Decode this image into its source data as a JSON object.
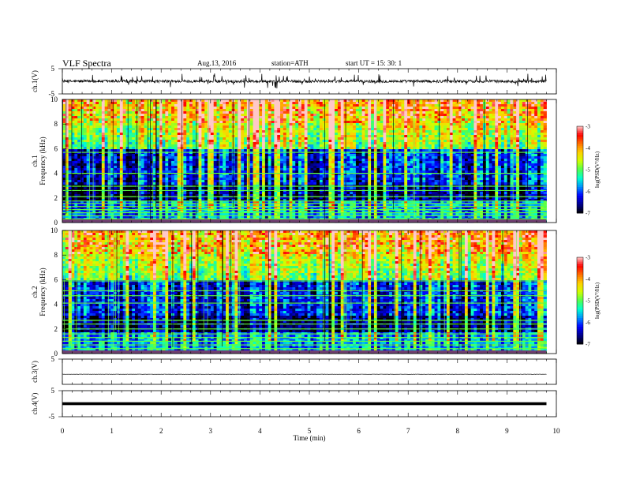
{
  "header": {
    "title": "VLF  Spectra",
    "date": "Aug.13, 2016",
    "station": "station=ATH",
    "start": "start  UT  =    15: 30: 1"
  },
  "chart_data": [
    {
      "id": "ch1-waveform",
      "type": "line",
      "ylabel": "ch.1(V)",
      "ylim": [
        -5,
        5
      ],
      "yticks": [
        "5",
        "-5"
      ],
      "xlim": [
        0,
        10
      ],
      "signal": {
        "baseline": 0,
        "noise_amplitude": 0.55,
        "spike_amplitude": 2.8
      }
    },
    {
      "id": "ch1-spectrogram",
      "type": "heatmap",
      "ylabel": "ch.1\nFrequency (kHz)",
      "ylim": [
        0,
        10
      ],
      "yticks": [
        "0",
        "2",
        "4",
        "6",
        "8",
        "10"
      ],
      "xlim": [
        0,
        9.8
      ],
      "colorbar": {
        "label": "log(PSD(V²/Hz)",
        "ticks": [
          "-3",
          "-4",
          "-5",
          "-6",
          "-7"
        ],
        "range": [
          -7,
          -3
        ]
      },
      "horizontal_lines_khz": [
        0.3,
        0.55,
        0.8,
        1.05,
        1.3,
        1.55,
        1.75,
        2.1,
        2.6,
        2.95,
        4.0,
        5.7
      ]
    },
    {
      "id": "ch2-spectrogram",
      "type": "heatmap",
      "ylabel": "ch.2\nFrequency (kHz)",
      "ylim": [
        0,
        10
      ],
      "yticks": [
        "0",
        "2",
        "4",
        "6",
        "8",
        "10"
      ],
      "xlim": [
        0,
        9.8
      ],
      "colorbar": {
        "label": "log(PSD(V²/Hz)",
        "ticks": [
          "-3",
          "-4",
          "-5",
          "-6",
          "-7"
        ],
        "range": [
          -7,
          -3
        ]
      },
      "horizontal_lines_khz": [
        0.4,
        0.7,
        1.0,
        1.3,
        1.6,
        2.0,
        2.4,
        2.7,
        4.1,
        4.7,
        5.1,
        5.9
      ]
    },
    {
      "id": "ch3-waveform",
      "type": "line",
      "ylabel": "ch.3(V)",
      "ylim": [
        -5,
        5
      ],
      "yticks": [
        "5"
      ],
      "xlim": [
        0,
        10
      ],
      "signal": {
        "baseline": -1,
        "noise_amplitude": 0.05,
        "spike_amplitude": 0
      }
    },
    {
      "id": "ch4-waveform",
      "type": "line",
      "ylabel": "ch.4(V)",
      "ylim": [
        -5,
        5
      ],
      "yticks": [
        "5",
        "-5"
      ],
      "xlim": [
        0,
        10
      ],
      "signal": {
        "baseline": 0,
        "noise_amplitude": 0.25,
        "spike_amplitude": 0
      }
    }
  ],
  "xaxis": {
    "label": "Time  (min)",
    "ticks": [
      "0",
      "1",
      "2",
      "3",
      "4",
      "5",
      "6",
      "7",
      "8",
      "9",
      "10"
    ],
    "range": [
      0,
      10
    ]
  },
  "colors": {
    "colormap": [
      "#000000",
      "#00008c",
      "#0000ff",
      "#0090ff",
      "#00ffd0",
      "#50ff50",
      "#d0ff00",
      "#ffd000",
      "#ff7000",
      "#ff0000",
      "#ffc8c8"
    ],
    "line": "#000000"
  }
}
